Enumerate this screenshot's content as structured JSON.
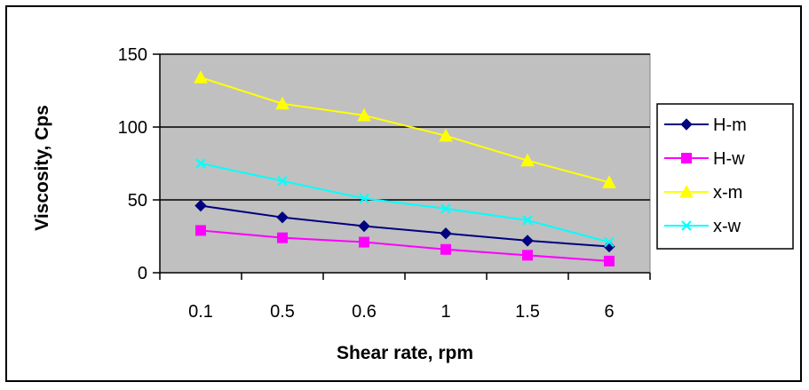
{
  "chart_data": {
    "type": "line",
    "title": "",
    "xlabel": "Shear rate, rpm",
    "ylabel": "Viscosity, Cps",
    "categories": [
      "0.1",
      "0.5",
      "0.6",
      "1",
      "1.5",
      "6"
    ],
    "ylim": [
      0,
      150
    ],
    "yticks": [
      0,
      50,
      100,
      150
    ],
    "grid": "horizontal major gridlines",
    "plot_background": "#c0c0c0",
    "legend_position": "right",
    "series": [
      {
        "name": "H-m",
        "values": [
          46,
          38,
          32,
          27,
          22,
          18
        ],
        "color": "#000080",
        "marker": "diamond"
      },
      {
        "name": "H-w",
        "values": [
          29,
          24,
          21,
          16,
          12,
          8
        ],
        "color": "#ff00ff",
        "marker": "square"
      },
      {
        "name": "x-m",
        "values": [
          134,
          116,
          108,
          94,
          77,
          62
        ],
        "color": "#ffff00",
        "marker": "triangle"
      },
      {
        "name": "x-w",
        "values": [
          75,
          63,
          51,
          44,
          36,
          21
        ],
        "color": "#00ffff",
        "marker": "x"
      }
    ]
  }
}
